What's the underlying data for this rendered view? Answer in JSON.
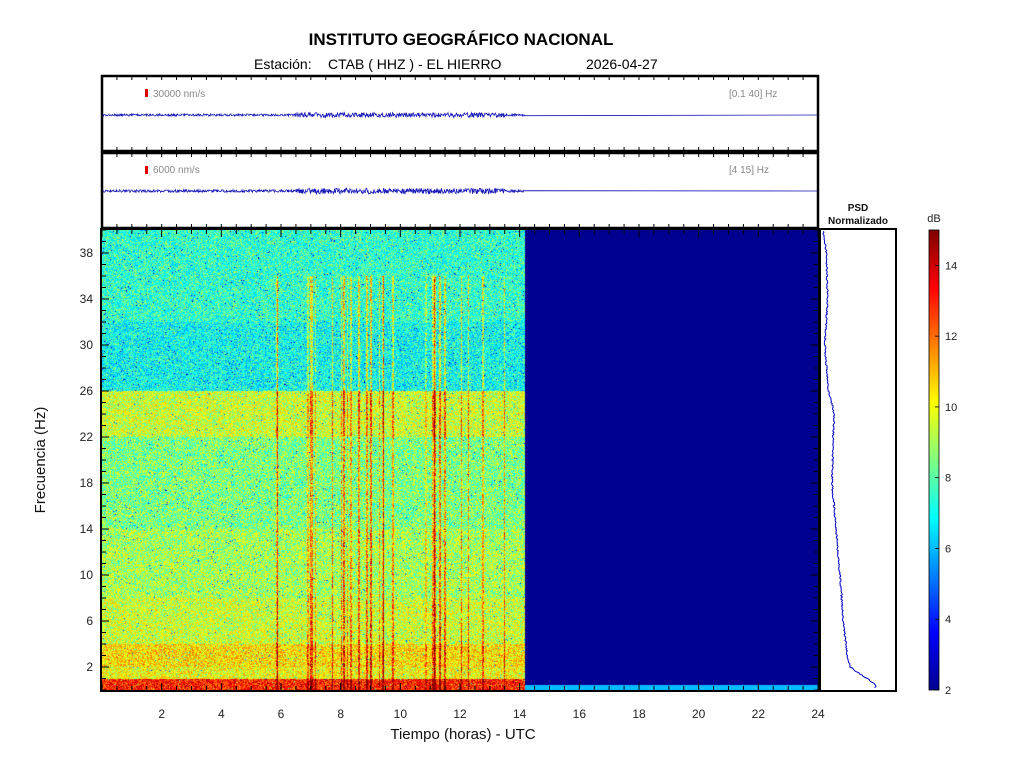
{
  "header": {
    "title": "INSTITUTO GEOGRÁFICO NACIONAL",
    "station_label": "Estación:",
    "station": "CTAB ( HHZ ) - EL HIERRO",
    "date": "2026-04-27"
  },
  "traces": [
    {
      "amplitude_label": "30000 nm/s",
      "band_label": "[0.1 40] Hz"
    },
    {
      "amplitude_label": "6000 nm/s",
      "band_label": "[4 15] Hz"
    }
  ],
  "psd_panel": {
    "title_line1": "PSD",
    "title_line2": "Normalizado"
  },
  "colorbar": {
    "unit": "dB",
    "ticks": [
      "2",
      "4",
      "6",
      "8",
      "10",
      "12",
      "14"
    ],
    "range": [
      2,
      15
    ],
    "colors": [
      "#00008f",
      "#0000ff",
      "#0080ff",
      "#00ffff",
      "#80ff80",
      "#ffff00",
      "#ff8000",
      "#ff0000",
      "#800000"
    ]
  },
  "chart_data": {
    "type": "heatmap",
    "xlabel": "Tiempo (horas) - UTC",
    "ylabel": "Frecuencia  (Hz)",
    "xlim": [
      0,
      24
    ],
    "ylim": [
      0,
      40
    ],
    "xticks": [
      "2",
      "4",
      "6",
      "8",
      "10",
      "12",
      "14",
      "16",
      "18",
      "20",
      "22",
      "24"
    ],
    "yticks": [
      "2",
      "6",
      "10",
      "14",
      "18",
      "22",
      "26",
      "30",
      "34",
      "38"
    ],
    "data_end_hour": 14.15,
    "frequency_bands_db": [
      {
        "f_range": [
          0,
          1
        ],
        "db": 13
      },
      {
        "f_range": [
          1,
          2
        ],
        "db": 10
      },
      {
        "f_range": [
          2,
          4
        ],
        "db": 10.5
      },
      {
        "f_range": [
          4,
          8
        ],
        "db": 9.5
      },
      {
        "f_range": [
          8,
          14
        ],
        "db": 9
      },
      {
        "f_range": [
          14,
          22
        ],
        "db": 8.5
      },
      {
        "f_range": [
          22,
          26
        ],
        "db": 9.5
      },
      {
        "f_range": [
          26,
          32
        ],
        "db": 7
      },
      {
        "f_range": [
          32,
          40
        ],
        "db": 7.5
      }
    ],
    "no_data_db": 2,
    "psd_profile": [
      {
        "f": 0.5,
        "v": 0.95
      },
      {
        "f": 2,
        "v": 0.5
      },
      {
        "f": 3,
        "v": 0.45
      },
      {
        "f": 6,
        "v": 0.38
      },
      {
        "f": 10,
        "v": 0.32
      },
      {
        "f": 14,
        "v": 0.25
      },
      {
        "f": 18,
        "v": 0.18
      },
      {
        "f": 22,
        "v": 0.2
      },
      {
        "f": 24,
        "v": 0.22
      },
      {
        "f": 26,
        "v": 0.12
      },
      {
        "f": 30,
        "v": 0.05
      },
      {
        "f": 34,
        "v": 0.1
      },
      {
        "f": 38,
        "v": 0.08
      },
      {
        "f": 40,
        "v": 0.02
      }
    ]
  }
}
